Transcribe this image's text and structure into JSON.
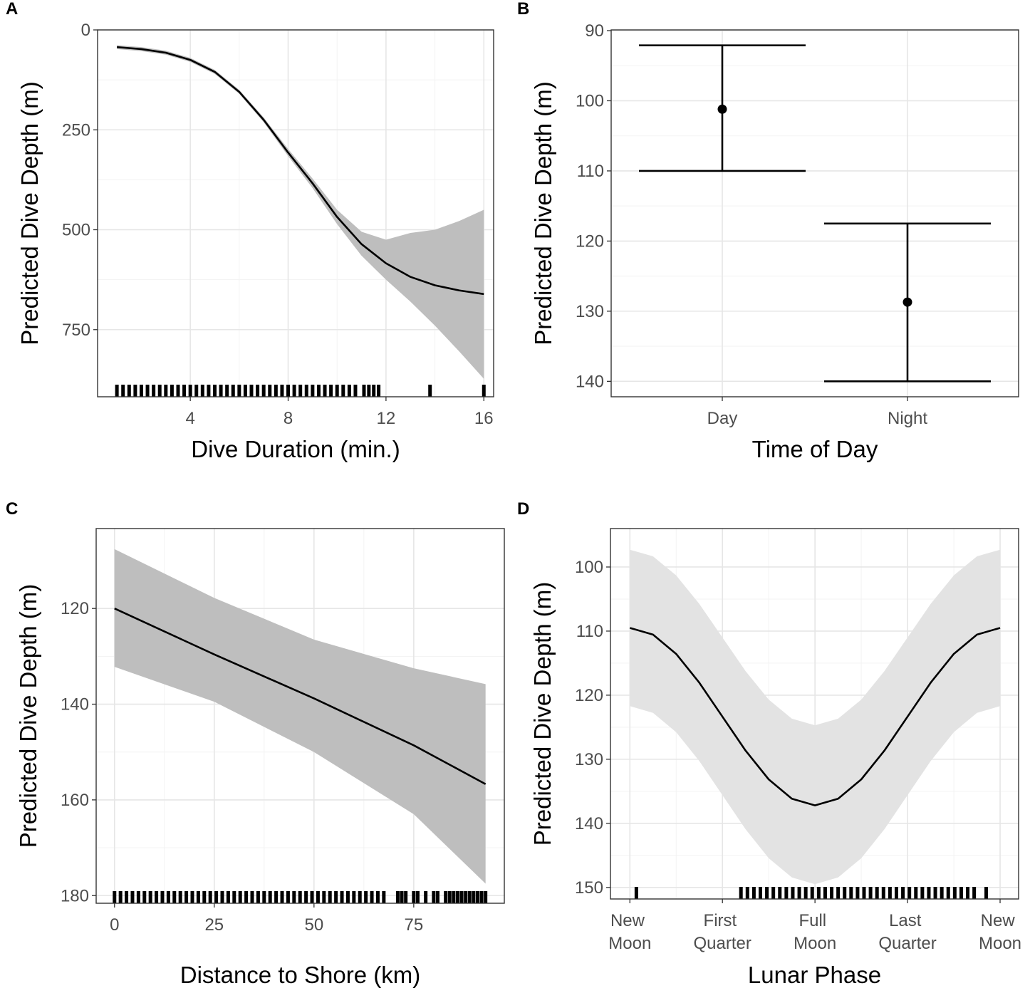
{
  "chart_data": [
    {
      "type": "line",
      "tag": "A",
      "xlabel": "Dive Duration (min.)",
      "ylabel": "Predicted Dive Depth (m)",
      "xlim": [
        0.21,
        16.4
      ],
      "ylim": [
        0,
        918
      ],
      "y_reversed": true,
      "xticks": [
        4,
        8,
        12,
        16
      ],
      "yticks": [
        0,
        250,
        500,
        750
      ],
      "grid": true,
      "color": "#000000",
      "ribbon_color": "#bebebe",
      "x": [
        1,
        2,
        3,
        4,
        5,
        6,
        7,
        8,
        9,
        10,
        11,
        12,
        13,
        14,
        15,
        16
      ],
      "values": [
        43,
        48,
        57,
        75,
        105,
        155,
        225,
        307,
        384,
        468,
        536,
        584,
        618,
        639,
        652,
        661
      ],
      "lower": [
        38,
        43,
        52,
        70,
        100,
        150,
        219,
        298,
        372,
        450,
        505,
        525,
        508,
        500,
        478,
        450
      ],
      "upper": [
        48,
        53,
        62,
        80,
        110,
        160,
        231,
        316,
        396,
        486,
        565,
        625,
        680,
        740,
        805,
        873
      ],
      "rug": [
        1,
        1.25,
        1.5,
        1.75,
        2,
        2.25,
        2.5,
        2.75,
        3,
        3.25,
        3.5,
        3.75,
        4,
        4.25,
        4.5,
        4.75,
        5,
        5.25,
        5.5,
        5.75,
        6,
        6.25,
        6.5,
        6.75,
        7,
        7.25,
        7.5,
        7.75,
        8,
        8.25,
        8.5,
        8.75,
        9,
        9.25,
        9.5,
        9.75,
        10,
        10.25,
        10.5,
        10.75,
        11.1,
        11.3,
        11.5,
        11.7,
        13.8,
        16
      ]
    },
    {
      "type": "errorbar",
      "tag": "B",
      "xlabel": "Time of Day",
      "ylabel": "Predicted Dive Depth (m)",
      "ylim": [
        89.9,
        142.2
      ],
      "y_reversed": true,
      "yticks": [
        90,
        100,
        110,
        120,
        130,
        140
      ],
      "grid": true,
      "color": "#000000",
      "categories": [
        "Day",
        "Night"
      ],
      "values": [
        101.2,
        128.7
      ],
      "lower": [
        92.1,
        117.5
      ],
      "upper": [
        110.0,
        140.0
      ]
    },
    {
      "type": "line",
      "tag": "C",
      "xlabel": "Distance to Shore (km)",
      "ylabel": "Predicted Dive Depth (m)",
      "xlim": [
        -4.6,
        97.7
      ],
      "ylim": [
        103.3,
        181.6
      ],
      "y_reversed": true,
      "xticks": [
        0,
        25,
        50,
        75
      ],
      "yticks": [
        120,
        140,
        160,
        180
      ],
      "grid": true,
      "color": "#000000",
      "ribbon_color": "#bebebe",
      "x": [
        0,
        25,
        50,
        75,
        93
      ],
      "values": [
        120,
        129.6,
        138.8,
        148.6,
        156.7
      ],
      "lower": [
        107.6,
        117.8,
        126.5,
        132.5,
        135.8
      ],
      "upper": [
        132.2,
        139.5,
        150,
        163,
        177.5
      ],
      "rug": [
        0,
        1.5,
        3,
        4.5,
        6,
        7.5,
        9,
        10.5,
        12,
        13.5,
        15,
        16.5,
        18,
        19.5,
        21,
        22.5,
        24,
        25.5,
        27,
        28.5,
        30,
        31.5,
        33,
        34.5,
        36,
        37.5,
        39,
        40.5,
        42,
        43.5,
        45,
        46.5,
        48,
        49.5,
        51,
        52.5,
        54,
        55.5,
        57,
        58.5,
        60,
        61.5,
        63,
        64.5,
        66,
        67.5,
        71,
        72,
        73,
        75,
        76,
        78,
        80,
        81,
        83,
        84,
        85,
        86,
        87,
        88,
        89,
        90,
        91,
        92,
        93
      ]
    },
    {
      "type": "line",
      "tag": "D",
      "xlabel": "Lunar Phase",
      "ylabel": "Predicted Dive Depth (m)",
      "xlim": [
        -0.21,
        4.2
      ],
      "ylim": [
        94,
        151.8
      ],
      "y_reversed": true,
      "xticks": [
        {
          "value": 0,
          "label": "New Moon"
        },
        {
          "value": 1,
          "label": "First Quarter"
        },
        {
          "value": 2,
          "label": "Full Moon"
        },
        {
          "value": 3,
          "label": "Last Quarter"
        },
        {
          "value": 4,
          "label": "New Moon"
        }
      ],
      "yticks": [
        100,
        110,
        120,
        130,
        140,
        150
      ],
      "grid": true,
      "color": "#000000",
      "ribbon_color": "#e3e3e3",
      "x": [
        0,
        0.25,
        0.5,
        0.75,
        1,
        1.25,
        1.5,
        1.75,
        2,
        2.25,
        2.5,
        2.75,
        3,
        3.25,
        3.5,
        3.75,
        4
      ],
      "values": [
        109.5,
        110.55,
        113.56,
        118.05,
        123.35,
        128.65,
        133.14,
        136.15,
        137.2,
        136.15,
        133.14,
        128.65,
        123.35,
        118.05,
        113.56,
        110.55,
        109.5
      ],
      "lower": [
        97.3,
        98.34,
        101.31,
        105.76,
        111,
        116.24,
        120.69,
        123.66,
        124.7,
        123.66,
        120.69,
        116.24,
        111,
        105.76,
        101.31,
        98.34,
        97.3
      ],
      "upper": [
        121.7,
        122.76,
        125.77,
        130.28,
        135.6,
        140.92,
        145.43,
        148.44,
        149.5,
        148.44,
        145.43,
        140.92,
        135.6,
        130.28,
        125.77,
        122.76,
        121.7
      ],
      "rug": [
        0.07,
        1.2,
        1.27,
        1.34,
        1.41,
        1.48,
        1.55,
        1.62,
        1.69,
        1.76,
        1.83,
        1.9,
        1.97,
        2.04,
        2.11,
        2.18,
        2.25,
        2.32,
        2.39,
        2.46,
        2.53,
        2.6,
        2.67,
        2.74,
        2.81,
        2.88,
        2.95,
        3.02,
        3.09,
        3.16,
        3.23,
        3.3,
        3.37,
        3.44,
        3.51,
        3.58,
        3.65,
        3.72,
        3.85
      ]
    }
  ]
}
